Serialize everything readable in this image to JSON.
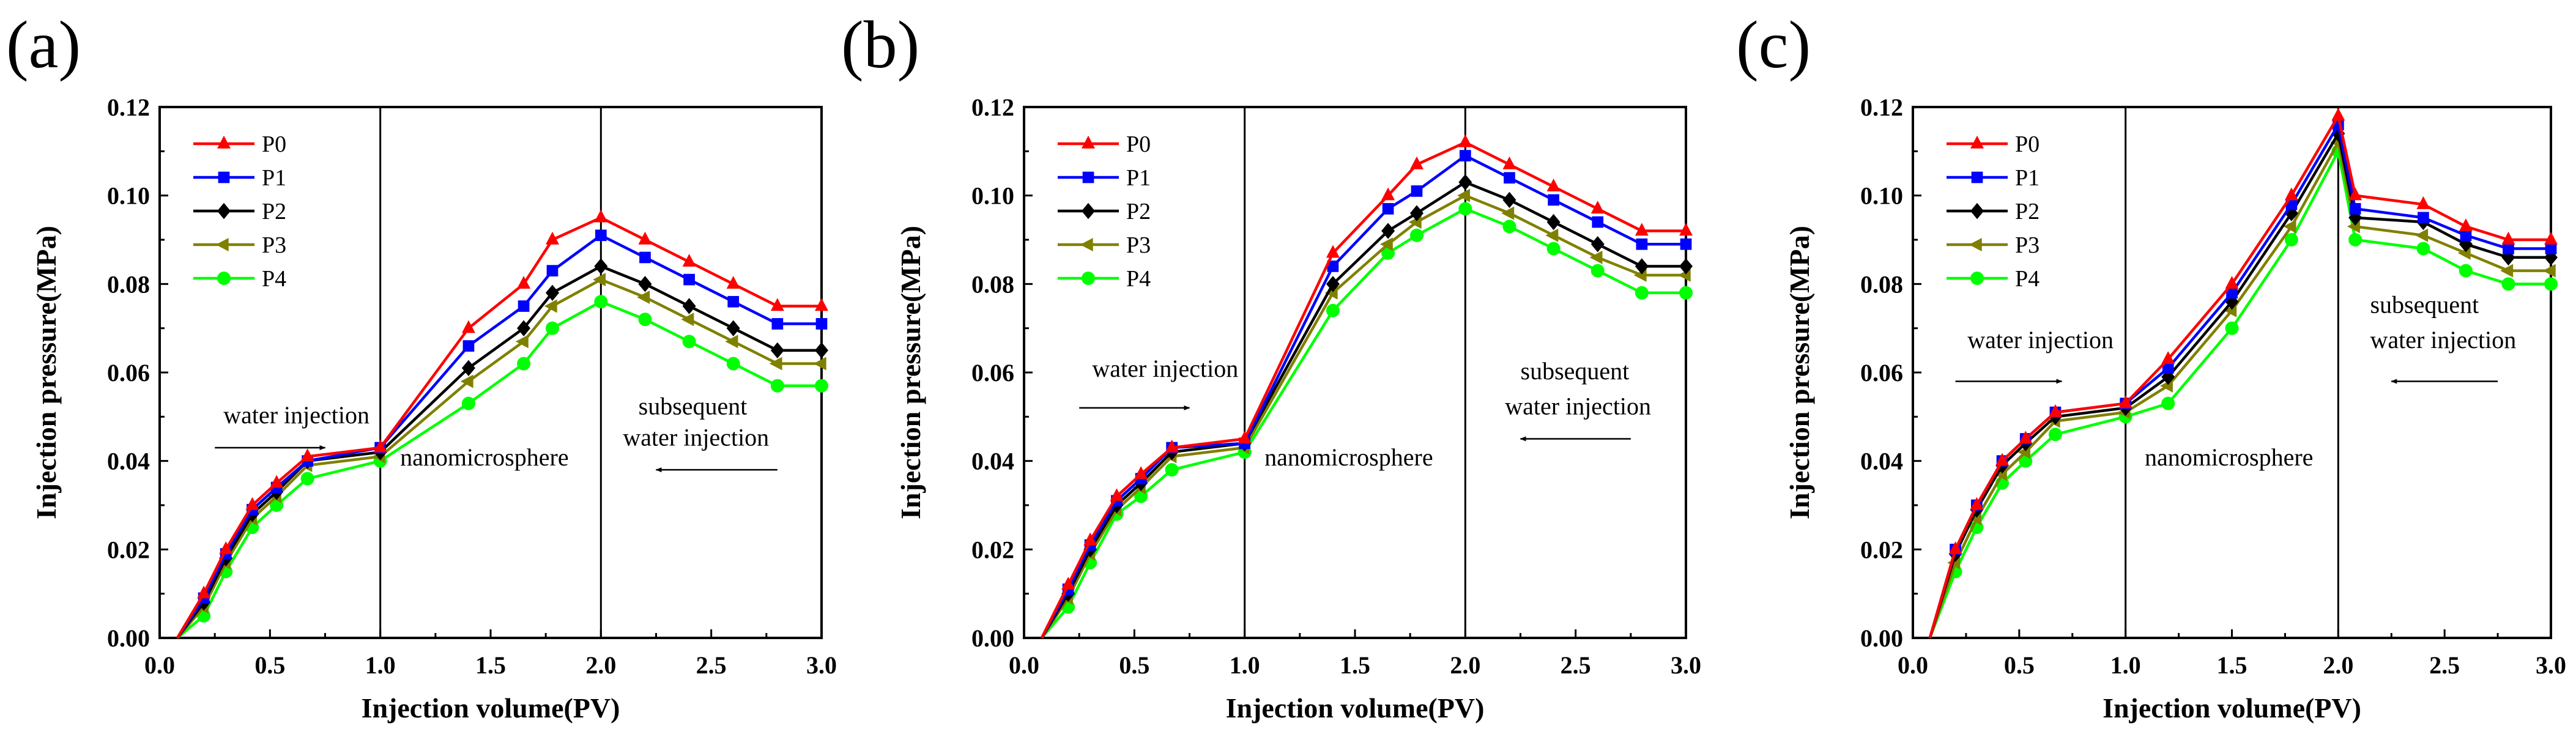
{
  "chart_data": [
    {
      "panel": "(a)",
      "type": "line",
      "xlabel": "Injection volume(PV)",
      "ylabel": "Injection pressure(MPa)",
      "xlim": [
        0.0,
        3.0
      ],
      "ylim": [
        0.0,
        0.12
      ],
      "xticks": [
        "0.0",
        "0.5",
        "1.0",
        "1.5",
        "2.0",
        "2.5",
        "3.0"
      ],
      "yticks": [
        "0.00",
        "0.02",
        "0.04",
        "0.06",
        "0.08",
        "0.10",
        "0.12"
      ],
      "x": [
        0.08,
        0.2,
        0.3,
        0.42,
        0.53,
        0.67,
        1.0,
        1.4,
        1.65,
        1.78,
        2.0,
        2.2,
        2.4,
        2.6,
        2.8,
        3.0
      ],
      "series": [
        {
          "name": "P0",
          "color": "#ff0000",
          "marker": "triangle-up",
          "values": [
            0.0,
            0.01,
            0.02,
            0.03,
            0.035,
            0.041,
            0.043,
            0.07,
            0.08,
            0.09,
            0.095,
            0.09,
            0.085,
            0.08,
            0.075,
            0.075
          ]
        },
        {
          "name": "P1",
          "color": "#0000ff",
          "marker": "square",
          "values": [
            0.0,
            0.009,
            0.019,
            0.029,
            0.034,
            0.04,
            0.043,
            0.066,
            0.075,
            0.083,
            0.091,
            0.086,
            0.081,
            0.076,
            0.071,
            0.071
          ]
        },
        {
          "name": "P2",
          "color": "#000000",
          "marker": "diamond",
          "values": [
            0.0,
            0.008,
            0.018,
            0.028,
            0.033,
            0.04,
            0.042,
            0.061,
            0.07,
            0.078,
            0.084,
            0.08,
            0.075,
            0.07,
            0.065,
            0.065
          ]
        },
        {
          "name": "P3",
          "color": "#808000",
          "marker": "triangle-left",
          "values": [
            0.0,
            0.007,
            0.017,
            0.027,
            0.032,
            0.039,
            0.041,
            0.058,
            0.067,
            0.075,
            0.081,
            0.077,
            0.072,
            0.067,
            0.062,
            0.062
          ]
        },
        {
          "name": "P4",
          "color": "#00ff00",
          "marker": "circle",
          "values": [
            0.0,
            0.005,
            0.015,
            0.025,
            0.03,
            0.036,
            0.04,
            0.053,
            0.062,
            0.07,
            0.076,
            0.072,
            0.067,
            0.062,
            0.057,
            0.057
          ]
        }
      ],
      "vlines": [
        1.0,
        2.0
      ],
      "annotations": [
        "water injection",
        "nanomicrosphere",
        "subsequent",
        "water injection"
      ]
    },
    {
      "panel": "(b)",
      "type": "line",
      "xlabel": "Injection volume(PV)",
      "ylabel": "Injection pressure(MPa)",
      "xlim": [
        0.0,
        3.0
      ],
      "ylim": [
        0.0,
        0.12
      ],
      "xticks": [
        "0.0",
        "0.5",
        "1.0",
        "1.5",
        "2.0",
        "2.5",
        "3.0"
      ],
      "yticks": [
        "0.00",
        "0.02",
        "0.04",
        "0.06",
        "0.08",
        "0.10",
        "0.12"
      ],
      "x": [
        0.08,
        0.2,
        0.3,
        0.42,
        0.53,
        0.67,
        1.0,
        1.4,
        1.65,
        1.78,
        2.0,
        2.2,
        2.4,
        2.6,
        2.8,
        3.0
      ],
      "series": [
        {
          "name": "P0",
          "color": "#ff0000",
          "marker": "triangle-up",
          "values": [
            0.0,
            0.012,
            0.022,
            0.032,
            0.037,
            0.043,
            0.045,
            0.087,
            0.1,
            0.107,
            0.112,
            0.107,
            0.102,
            0.097,
            0.092,
            0.092
          ]
        },
        {
          "name": "P1",
          "color": "#0000ff",
          "marker": "square",
          "values": [
            0.0,
            0.011,
            0.021,
            0.031,
            0.036,
            0.043,
            0.044,
            0.084,
            0.097,
            0.101,
            0.109,
            0.104,
            0.099,
            0.094,
            0.089,
            0.089
          ]
        },
        {
          "name": "P2",
          "color": "#000000",
          "marker": "diamond",
          "values": [
            0.0,
            0.01,
            0.02,
            0.03,
            0.035,
            0.042,
            0.044,
            0.08,
            0.092,
            0.096,
            0.103,
            0.099,
            0.094,
            0.089,
            0.084,
            0.084
          ]
        },
        {
          "name": "P3",
          "color": "#808000",
          "marker": "triangle-left",
          "values": [
            0.0,
            0.009,
            0.019,
            0.029,
            0.034,
            0.041,
            0.043,
            0.078,
            0.089,
            0.094,
            0.1,
            0.096,
            0.091,
            0.086,
            0.082,
            0.082
          ]
        },
        {
          "name": "P4",
          "color": "#00ff00",
          "marker": "circle",
          "values": [
            0.0,
            0.007,
            0.017,
            0.028,
            0.032,
            0.038,
            0.042,
            0.074,
            0.087,
            0.091,
            0.097,
            0.093,
            0.088,
            0.083,
            0.078,
            0.078
          ]
        }
      ],
      "vlines": [
        1.0,
        2.0
      ],
      "annotations": [
        "water injection",
        "nanomicrosphere",
        "subsequent",
        "water injection"
      ]
    },
    {
      "panel": "(c)",
      "type": "line",
      "xlabel": "Injection volume(PV)",
      "ylabel": "Injection pressure(MPa)",
      "xlim": [
        0.0,
        3.0
      ],
      "ylim": [
        0.0,
        0.12
      ],
      "xticks": [
        "0.0",
        "0.5",
        "1.0",
        "1.5",
        "2.0",
        "2.5",
        "3.0"
      ],
      "yticks": [
        "0.00",
        "0.02",
        "0.04",
        "0.06",
        "0.08",
        "0.10",
        "0.12"
      ],
      "x": [
        0.08,
        0.2,
        0.3,
        0.42,
        0.53,
        0.67,
        1.0,
        1.2,
        1.5,
        1.78,
        2.0,
        2.08,
        2.4,
        2.6,
        2.8,
        3.0
      ],
      "series": [
        {
          "name": "P0",
          "color": "#ff0000",
          "marker": "triangle-up",
          "values": [
            0.0,
            0.02,
            0.03,
            0.04,
            0.045,
            0.051,
            0.053,
            0.063,
            0.08,
            0.1,
            0.118,
            0.1,
            0.098,
            0.093,
            0.09,
            0.09
          ]
        },
        {
          "name": "P1",
          "color": "#0000ff",
          "marker": "square",
          "values": [
            0.0,
            0.02,
            0.03,
            0.04,
            0.045,
            0.051,
            0.053,
            0.061,
            0.078,
            0.098,
            0.116,
            0.097,
            0.095,
            0.091,
            0.088,
            0.088
          ]
        },
        {
          "name": "P2",
          "color": "#000000",
          "marker": "diamond",
          "values": [
            0.0,
            0.019,
            0.029,
            0.039,
            0.044,
            0.05,
            0.052,
            0.059,
            0.076,
            0.096,
            0.114,
            0.095,
            0.094,
            0.089,
            0.086,
            0.086
          ]
        },
        {
          "name": "P3",
          "color": "#808000",
          "marker": "triangle-left",
          "values": [
            0.0,
            0.017,
            0.027,
            0.037,
            0.042,
            0.049,
            0.051,
            0.057,
            0.074,
            0.093,
            0.112,
            0.093,
            0.091,
            0.087,
            0.083,
            0.083
          ]
        },
        {
          "name": "P4",
          "color": "#00ff00",
          "marker": "circle",
          "values": [
            0.0,
            0.015,
            0.025,
            0.035,
            0.04,
            0.046,
            0.05,
            0.053,
            0.07,
            0.09,
            0.11,
            0.09,
            0.088,
            0.083,
            0.08,
            0.08
          ]
        }
      ],
      "vlines": [
        1.0,
        2.0
      ],
      "annotations": [
        "water injection",
        "nanomicrosphere",
        "subsequent",
        "water injection"
      ]
    }
  ]
}
